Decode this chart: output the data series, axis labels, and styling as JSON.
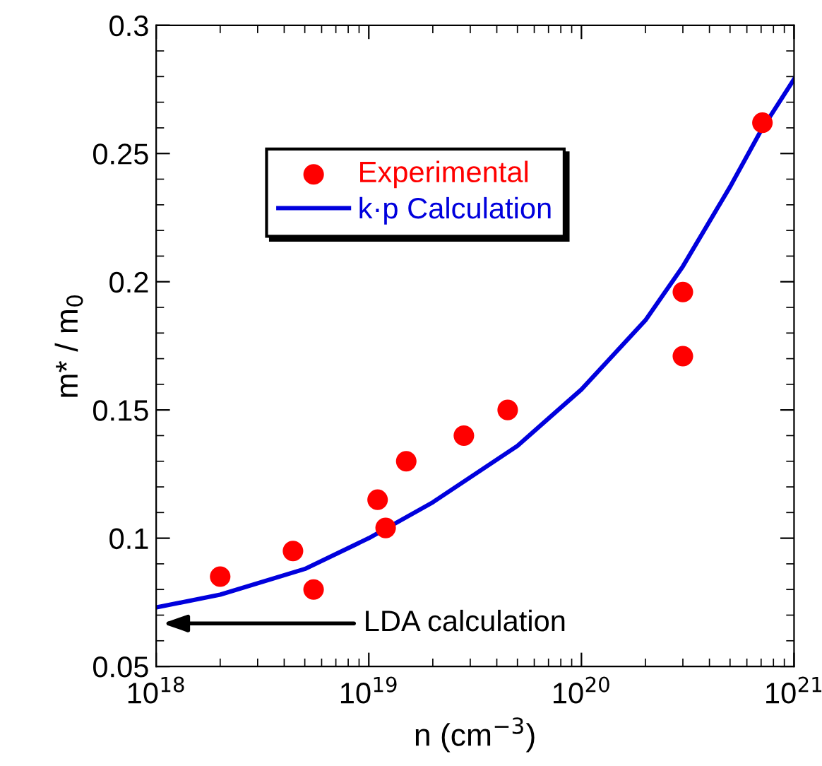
{
  "chart_data": {
    "type": "scatter",
    "xlabel": "n (cm$^{−3}$)",
    "ylabel": "m* / m$_{0}$",
    "log": "x",
    "xlim": [
      1e+18,
      1e+21
    ],
    "ylim": [
      0.05,
      0.3
    ],
    "xticks": [
      {
        "value": 1e+18,
        "label": "10$^{18}$"
      },
      {
        "value": 1e+19,
        "label": "10$^{19}$"
      },
      {
        "value": 1e+20,
        "label": "10$^{20}$"
      },
      {
        "value": 1e+21,
        "label": "10$^{21}$"
      }
    ],
    "yticks": [
      0.05,
      0.1,
      0.15,
      0.2,
      0.25,
      0.3
    ],
    "grid": false,
    "legend": "top left",
    "marker": "circle",
    "series": [
      {
        "name": "Experimental",
        "color": "#ff0000",
        "x": [
          2e+18,
          4.4e+18,
          5.5e+18,
          1.1e+19,
          1.2e+19,
          1.5e+19,
          2.8e+19,
          4.5e+19,
          3e+20,
          3e+20,
          7.1e+20
        ],
        "values": [
          0.085,
          0.095,
          0.08,
          0.115,
          0.104,
          0.13,
          0.14,
          0.15,
          0.196,
          0.171,
          0.262
        ]
      },
      {
        "name": "k·p Calculation",
        "type": "line",
        "marker": "none",
        "color": "#0000dd",
        "x": [
          1e+18,
          2e+18,
          5e+18,
          1e+19,
          2e+19,
          5e+19,
          1e+20,
          2e+20,
          3e+20,
          5e+20,
          7e+20,
          1e+21
        ],
        "values": [
          0.073,
          0.078,
          0.088,
          0.1,
          0.114,
          0.136,
          0.158,
          0.185,
          0.206,
          0.237,
          0.259,
          0.279
        ]
      }
    ],
    "annotations": [
      "LDA calculation"
    ]
  }
}
